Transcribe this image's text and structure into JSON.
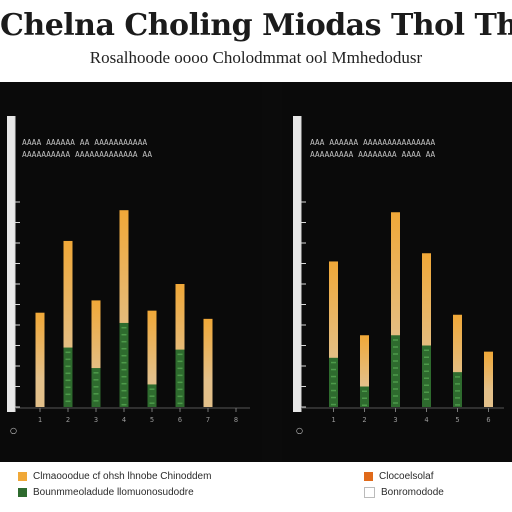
{
  "header": {
    "title": "Chelna Choling Miodas Thol The Ch",
    "subtitle": "Rosalhoode oooo Cholodmmat ool Mmhedodusr"
  },
  "panels": [
    {
      "heading_line1": "AAAA AAAAAA AA AAAAAAAAAAA",
      "heading_line2": "AAAAAAAAAA AAAAAAAAAAAAA AA"
    },
    {
      "heading_line1": "AAA AAAAAA AAAAAAAAAAAAAAA",
      "heading_line2": "AAAAAAAAA AAAAAAAA AAAA AA"
    }
  ],
  "legend": {
    "left_line1": "Clmaooodue cf ohsh lhnobe Chinoddem",
    "left_line2": "Bounmmeoladude llomuonosudodre",
    "right_line1": "Clocoelsolaf",
    "right_line2": "Bonromodode"
  },
  "colors": {
    "bar_top": "#f0a838",
    "bar_mid": "#e3c08a",
    "bar_bottom": "#2e6b2e",
    "panel_bg": "#0a0a0a",
    "axis": "#d8d8d8"
  },
  "chart_data": [
    {
      "type": "bar",
      "title": "",
      "xlabel": "",
      "ylabel": "",
      "ylim": [
        0,
        100
      ],
      "categories": [
        "1",
        "2",
        "3",
        "4",
        "5",
        "6",
        "7",
        "8"
      ],
      "series": [
        {
          "values": [
            0,
            0,
            0,
            0,
            0,
            0,
            0,
            0
          ]
        },
        {
          "values": [
            46,
            81,
            52,
            96,
            47,
            60,
            43,
            0
          ]
        },
        {
          "values": [
            0,
            29,
            19,
            41,
            11,
            28,
            0,
            0
          ]
        }
      ]
    },
    {
      "type": "bar",
      "title": "",
      "xlabel": "",
      "ylabel": "",
      "ylim": [
        0,
        100
      ],
      "categories": [
        "1",
        "2",
        "3",
        "4",
        "5",
        "6"
      ],
      "series": [
        {
          "values": [
            0,
            0,
            0,
            0,
            0,
            0
          ]
        },
        {
          "values": [
            71,
            35,
            95,
            75,
            45,
            27
          ]
        },
        {
          "values": [
            24,
            10,
            35,
            30,
            17,
            0
          ]
        }
      ]
    }
  ]
}
